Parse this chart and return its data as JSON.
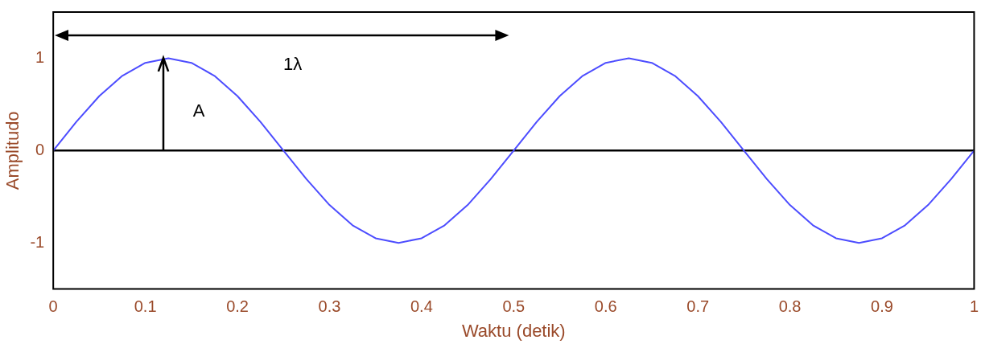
{
  "chart_data": {
    "type": "line",
    "xlabel": "Waktu (detik)",
    "ylabel": "Amplitudo",
    "x": [
      0,
      0.025,
      0.05,
      0.075,
      0.1,
      0.125,
      0.15,
      0.175,
      0.2,
      0.225,
      0.25,
      0.275,
      0.3,
      0.325,
      0.35,
      0.375,
      0.4,
      0.425,
      0.45,
      0.475,
      0.5,
      0.525,
      0.55,
      0.575,
      0.6,
      0.625,
      0.65,
      0.675,
      0.7,
      0.725,
      0.75,
      0.775,
      0.8,
      0.825,
      0.85,
      0.875,
      0.9,
      0.925,
      0.95,
      0.975,
      1
    ],
    "series": [
      {
        "color": "#4d4dff",
        "values": [
          0,
          0.31,
          0.59,
          0.81,
          0.95,
          1,
          0.95,
          0.81,
          0.59,
          0.31,
          0,
          -0.31,
          -0.59,
          -0.81,
          -0.95,
          -1,
          -0.95,
          -0.81,
          -0.59,
          -0.31,
          0,
          0.31,
          0.59,
          0.81,
          0.95,
          1,
          0.95,
          0.81,
          0.59,
          0.31,
          0,
          -0.31,
          -0.59,
          -0.81,
          -0.95,
          -1,
          -0.95,
          -0.81,
          -0.59,
          -0.31,
          0
        ]
      }
    ],
    "xlim": [
      0,
      1
    ],
    "xticks": [
      0,
      0.1,
      0.2,
      0.3,
      0.4,
      0.5,
      0.6,
      0.7,
      0.8,
      0.9,
      1
    ],
    "ylim": [
      -1.5,
      1.5
    ],
    "yticks": [
      -1,
      0,
      1
    ],
    "ref_lines": [
      {
        "axis": "y",
        "value": 0,
        "color": "#000000"
      }
    ],
    "annotations": [
      "1λ",
      "A"
    ],
    "legend": false,
    "marker": "none",
    "line_style": "solid"
  }
}
